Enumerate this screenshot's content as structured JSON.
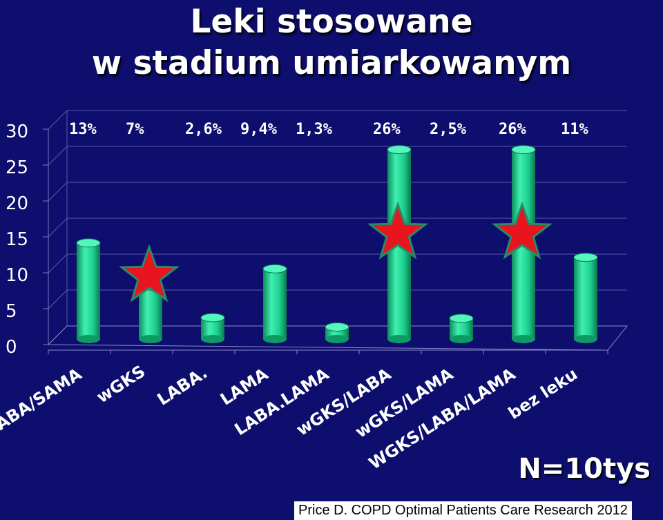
{
  "title_line1": "Leki stosowane",
  "title_line2": "w stadium umiarkowanym",
  "note": "N=10tys",
  "source": "Price  D. COPD Optimal Patients Care Research  2012",
  "colors": {
    "background": "#0e0e6e",
    "bar": "#1ecf8f",
    "star": "#e8141e",
    "star_outline": "#2a8a6a",
    "text": "#ffffff"
  },
  "chart_data": {
    "type": "bar",
    "categories": [
      "SABA/SAMA",
      "wGKS",
      "LABA.",
      "LAMA",
      "LABA.LAMA",
      "wGKS/LABA",
      "wGKS/LAMA",
      "WGKS/LABA/LAMA",
      "bez leku"
    ],
    "values": [
      13,
      7,
      2.6,
      9.4,
      1.3,
      26,
      2.5,
      26,
      11
    ],
    "data_labels": [
      "13%",
      "7%",
      "2,6%",
      "9,4%",
      "1,3%",
      "26%",
      "2,5%",
      "26%",
      "11%"
    ],
    "yticks": [
      "0",
      "5",
      "10",
      "15",
      "20",
      "25",
      "30"
    ],
    "ylim": [
      0,
      30
    ],
    "grid": true,
    "highlighted": [
      "wGKS",
      "wGKS/LABA",
      "WGKS/LABA/LAMA"
    ],
    "highlight_marker": "star"
  }
}
